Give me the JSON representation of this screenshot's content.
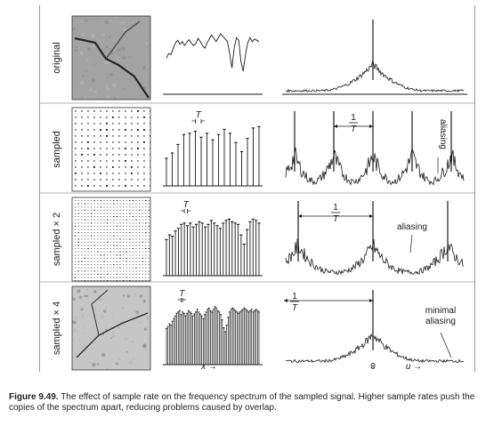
{
  "rows": [
    {
      "label": "original",
      "signal": [
        0.55,
        0.62,
        0.6,
        0.7,
        0.78,
        0.82,
        0.76,
        0.8,
        0.74,
        0.79,
        0.83,
        0.78,
        0.74,
        0.77,
        0.85,
        0.8,
        0.74,
        0.7,
        0.78,
        0.84,
        0.9,
        0.85,
        0.8,
        0.86,
        0.92,
        0.88,
        0.84,
        0.8,
        0.62,
        0.4,
        0.7,
        0.86,
        0.82,
        0.5,
        0.35,
        0.6,
        0.78,
        0.86,
        0.8,
        0.84,
        0.82,
        0.8
      ]
    },
    {
      "label": "sampled",
      "sampleValues": [
        0.42,
        0.5,
        0.63,
        0.78,
        0.8,
        0.83,
        0.74,
        0.8,
        0.7,
        0.78,
        0.86,
        0.8,
        0.66,
        0.52,
        0.72,
        0.88,
        0.9
      ],
      "dimension": "T",
      "oneOverT": {
        "num": "1",
        "den": "T"
      },
      "note": "aliasing"
    },
    {
      "label": "sampled × 2",
      "sampleValues": [
        0.55,
        0.62,
        0.6,
        0.68,
        0.72,
        0.78,
        0.8,
        0.76,
        0.8,
        0.74,
        0.78,
        0.82,
        0.8,
        0.74,
        0.78,
        0.84,
        0.8,
        0.76,
        0.72,
        0.8,
        0.84,
        0.86,
        0.82,
        0.8,
        0.78,
        0.62,
        0.48,
        0.7,
        0.82,
        0.86,
        0.84,
        0.8
      ],
      "dimension": "T",
      "oneOverT": {
        "num": "1",
        "den": "T"
      },
      "note": "aliasing"
    },
    {
      "label": "sampled × 4",
      "sampleValues": [
        0.55,
        0.58,
        0.62,
        0.6,
        0.66,
        0.7,
        0.74,
        0.78,
        0.8,
        0.82,
        0.76,
        0.8,
        0.78,
        0.74,
        0.78,
        0.82,
        0.8,
        0.78,
        0.74,
        0.77,
        0.8,
        0.84,
        0.8,
        0.77,
        0.74,
        0.7,
        0.76,
        0.8,
        0.84,
        0.86,
        0.82,
        0.8,
        0.84,
        0.88,
        0.86,
        0.82,
        0.8,
        0.76,
        0.68,
        0.56,
        0.5,
        0.6,
        0.72,
        0.8,
        0.84,
        0.86,
        0.84,
        0.82,
        0.8,
        0.78,
        0.8,
        0.82,
        0.84,
        0.86,
        0.84,
        0.82,
        0.8,
        0.82,
        0.84,
        0.8,
        0.82,
        0.84,
        0.82,
        0.8
      ],
      "dimension": "T",
      "oneOverT": {
        "num": "1",
        "den": "T"
      },
      "note": "minimal\naliasing"
    }
  ],
  "axes": {
    "x": "x →",
    "u": "u →",
    "zero": "0"
  },
  "caption": {
    "lead": "Figure 9.49.",
    "text": "The effect of sample rate on the frequency spectrum of the sampled signal. Higher sample rates push the copies of the spectrum apart, reducing problems caused by overlap."
  },
  "colors": {
    "ink": "#1a1a1a",
    "rule": "#9a9a9a"
  }
}
